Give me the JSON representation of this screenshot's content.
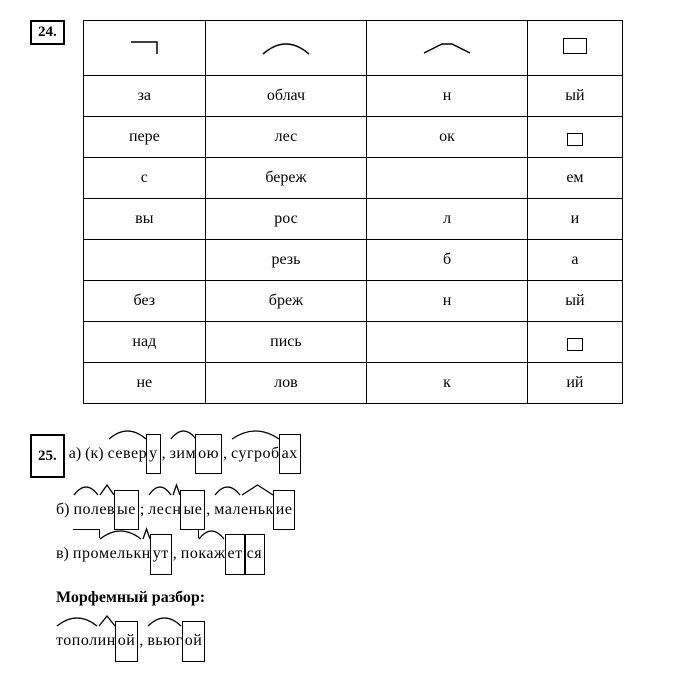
{
  "ex24": {
    "number": "24.",
    "columns": [
      "prefix",
      "root",
      "suffix",
      "ending"
    ],
    "rows": [
      {
        "c1": "за",
        "c2": "облач",
        "c3": "н",
        "c4": "ый",
        "c4_box": false
      },
      {
        "c1": "пере",
        "c2": "лес",
        "c3": "ок",
        "c4": "",
        "c4_box": true
      },
      {
        "c1": "с",
        "c2": "береж",
        "c3": "",
        "c4": "ем",
        "c4_box": false
      },
      {
        "c1": "вы",
        "c2": "рос",
        "c3": "л",
        "c4": "и",
        "c4_box": false
      },
      {
        "c1": "",
        "c2": "резь",
        "c3": "б",
        "c4": "а",
        "c4_box": false
      },
      {
        "c1": "без",
        "c2": "бреж",
        "c3": "н",
        "c4": "ый",
        "c4_box": false
      },
      {
        "c1": "над",
        "c2": "пись",
        "c3": "",
        "c4": "",
        "c4_box": true
      },
      {
        "c1": "не",
        "c2": "лов",
        "c3": "к",
        "c4": "ий",
        "c4_box": false
      }
    ]
  },
  "ex25": {
    "number": "25.",
    "line_a_label": "а) (к)",
    "line_b_label": "б)",
    "line_c_label": "в)",
    "morph_label": "Морфемный разбор:",
    "words": {
      "sever": {
        "root": "север",
        "end": "у"
      },
      "zim": {
        "root": "зим",
        "end": "ою"
      },
      "sugrob": {
        "root": "сугроб",
        "end": "ах"
      },
      "polev": {
        "root": "пол",
        "suf": "ев",
        "end": "ые"
      },
      "lesn": {
        "root": "лес",
        "suf": "н",
        "end": "ые"
      },
      "malenk": {
        "root": "мал",
        "suf": "еньк",
        "end": "ие"
      },
      "promelkn": {
        "pre": "про",
        "root": "мельк",
        "suf": "н",
        "end": "ут"
      },
      "pokazh": {
        "pre": "по",
        "root": "каж",
        "end": "ет",
        "post": "ся"
      },
      "topolin": {
        "root": "топол",
        "suf": "ин",
        "end": "ой"
      },
      "vyug": {
        "root": "вьюг",
        "end": "ой"
      }
    },
    "sep_comma": ",",
    "sep_semi": ";"
  }
}
